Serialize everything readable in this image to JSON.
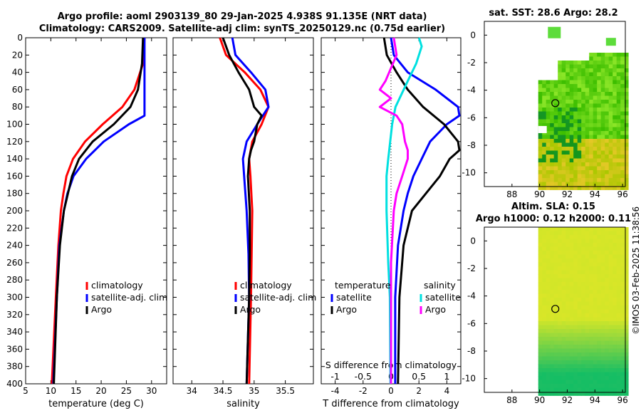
{
  "titles": {
    "line1": "Argo profile: aoml 2903139_80 29-Jan-2025 4.938S 91.135E (NRT data)",
    "line2": "Climatology: CARS2009. Satellite-adj clim: synTS_20250129.nc (0.75d earlier)",
    "sst": "sat. SST: 28.6 Argo: 28.2",
    "sla1": "Altim. SLA: 0.15",
    "sla2": "Argo h1000: 0.12 h2000: 0.11",
    "stamp": "©IMOS 03-Feb-2025 11:38:56"
  },
  "colors": {
    "climatology": "#ff0000",
    "satellite": "#0000ff",
    "argo": "#000000",
    "s_satellite": "#00e0e0",
    "s_argo": "#ff00ff"
  },
  "chart_data": [
    {
      "type": "line",
      "id": "temperature",
      "xlabel": "temperature (deg C)",
      "ylabel": "",
      "xlim": [
        5,
        33
      ],
      "ylim": [
        400,
        0
      ],
      "xticks": [
        5,
        10,
        15,
        20,
        25,
        30
      ],
      "yticks": [
        0,
        20,
        40,
        60,
        80,
        100,
        120,
        140,
        160,
        180,
        200,
        220,
        240,
        260,
        280,
        300,
        320,
        340,
        360,
        380,
        400
      ],
      "legend": [
        "climatology",
        "satellite-adj. clim",
        "Argo"
      ],
      "series": [
        {
          "name": "climatology",
          "depth": [
            0,
            30,
            60,
            80,
            100,
            120,
            140,
            160,
            180,
            200,
            240,
            300,
            400
          ],
          "values": [
            28.6,
            28.3,
            26.6,
            24.2,
            20.3,
            16.8,
            14.4,
            13.1,
            12.5,
            12.0,
            11.5,
            11.0,
            10.2
          ]
        },
        {
          "name": "satellite-adj. clim",
          "depth": [
            0,
            40,
            90,
            100,
            120,
            140,
            160,
            180,
            200,
            240,
            300,
            400
          ],
          "values": [
            28.6,
            28.6,
            28.6,
            25.5,
            20.5,
            17.0,
            14.5,
            13.3,
            12.6,
            11.7,
            11.2,
            10.5
          ]
        },
        {
          "name": "Argo",
          "depth": [
            0,
            30,
            60,
            80,
            100,
            120,
            140,
            160,
            180,
            200,
            240,
            300,
            400
          ],
          "values": [
            28.3,
            28.1,
            27.3,
            25.8,
            22.5,
            18.3,
            15.6,
            14.2,
            13.4,
            12.6,
            11.8,
            11.2,
            10.6
          ]
        }
      ]
    },
    {
      "type": "line",
      "id": "salinity",
      "xlabel": "salinity",
      "ylabel": "",
      "xlim": [
        33.7,
        35.95
      ],
      "ylim": [
        400,
        0
      ],
      "xticks": [
        34,
        34.5,
        35,
        35.5
      ],
      "legend": [
        "climatology",
        "satellite-adj. clim",
        "Argo"
      ],
      "series": [
        {
          "name": "climatology",
          "depth": [
            0,
            20,
            40,
            60,
            80,
            100,
            120,
            140,
            160,
            200,
            250,
            300,
            400
          ],
          "values": [
            34.45,
            34.55,
            34.85,
            35.1,
            35.23,
            35.12,
            34.97,
            34.92,
            34.94,
            34.97,
            34.96,
            34.95,
            34.92
          ]
        },
        {
          "name": "satellite-adj. clim",
          "depth": [
            0,
            20,
            40,
            60,
            80,
            100,
            120,
            140,
            160,
            200,
            250,
            300,
            400
          ],
          "values": [
            34.65,
            34.7,
            34.95,
            35.18,
            35.23,
            35.05,
            34.88,
            34.82,
            34.84,
            34.88,
            34.91,
            34.92,
            34.88
          ]
        },
        {
          "name": "Argo",
          "depth": [
            0,
            20,
            40,
            60,
            80,
            90,
            100,
            120,
            130,
            140,
            160,
            200,
            250,
            300,
            400
          ],
          "values": [
            34.5,
            34.6,
            34.75,
            34.92,
            35.0,
            35.12,
            35.05,
            35.0,
            34.95,
            34.92,
            34.9,
            34.93,
            34.93,
            34.92,
            34.88
          ]
        }
      ]
    },
    {
      "type": "line",
      "id": "differences",
      "xlabel": "T difference from climatology",
      "xlabel_top": "S difference from climatology",
      "xlim": [
        -5,
        5
      ],
      "xticks": [
        -4,
        -2,
        0,
        2,
        4
      ],
      "xlim_top": [
        -1.25,
        1.25
      ],
      "xticks_top": [
        -1,
        -0.5,
        0,
        0.5,
        1
      ],
      "legend_headers": [
        "temperature",
        "salinity"
      ],
      "legend_t": [
        "satellite",
        "Argo"
      ],
      "legend_s": [
        "satellite",
        "Argo"
      ],
      "series": [
        {
          "name": "T satellite",
          "depth": [
            0,
            20,
            40,
            60,
            80,
            90,
            100,
            120,
            140,
            160,
            180,
            200,
            240,
            300,
            400
          ],
          "values": [
            0,
            0.2,
            1.2,
            3.2,
            4.8,
            4.9,
            4.0,
            2.8,
            2.2,
            1.6,
            1.2,
            0.9,
            0.5,
            0.3,
            0.3
          ]
        },
        {
          "name": "T Argo",
          "depth": [
            0,
            20,
            40,
            60,
            80,
            100,
            120,
            130,
            140,
            160,
            180,
            200,
            240,
            300,
            400
          ],
          "values": [
            -0.5,
            -0.3,
            0.4,
            1.2,
            2.3,
            3.8,
            4.8,
            4.9,
            4.2,
            3.5,
            2.5,
            1.5,
            0.9,
            0.6,
            0.5
          ]
        },
        {
          "name": "S satellite",
          "depth": [
            0,
            10,
            30,
            50,
            80,
            100,
            140,
            160,
            200,
            260,
            300,
            400
          ],
          "values": [
            0.5,
            0.55,
            0.45,
            0.3,
            0.08,
            0.02,
            -0.05,
            -0.08,
            -0.08,
            -0.05,
            -0.02,
            -0.01
          ]
        },
        {
          "name": "S Argo",
          "depth": [
            0,
            20,
            50,
            60,
            70,
            80,
            90,
            100,
            120,
            130,
            140,
            160,
            180,
            200,
            260,
            300,
            400
          ],
          "values": [
            0.05,
            0.1,
            -0.1,
            -0.2,
            0.0,
            -0.2,
            0.1,
            0.2,
            0.25,
            0.3,
            0.3,
            0.2,
            0.1,
            0.05,
            0.0,
            0.0,
            0.0
          ]
        }
      ]
    },
    {
      "type": "heatmap",
      "id": "sst_map",
      "xlim": [
        86,
        96.2
      ],
      "ylim": [
        -11,
        1
      ],
      "xticks": [
        88,
        90,
        92,
        94,
        96
      ],
      "yticks": [
        0,
        -2,
        -4,
        -6,
        -8,
        -10
      ],
      "marker": {
        "lon": 91.135,
        "lat": -4.938
      }
    },
    {
      "type": "heatmap",
      "id": "sla_map",
      "xlim": [
        86,
        96.2
      ],
      "ylim": [
        -11,
        1
      ],
      "xticks": [
        88,
        90,
        92,
        94,
        96
      ],
      "yticks": [
        0,
        -2,
        -4,
        -6,
        -8,
        -10
      ],
      "marker": {
        "lon": 91.135,
        "lat": -4.938
      }
    }
  ]
}
